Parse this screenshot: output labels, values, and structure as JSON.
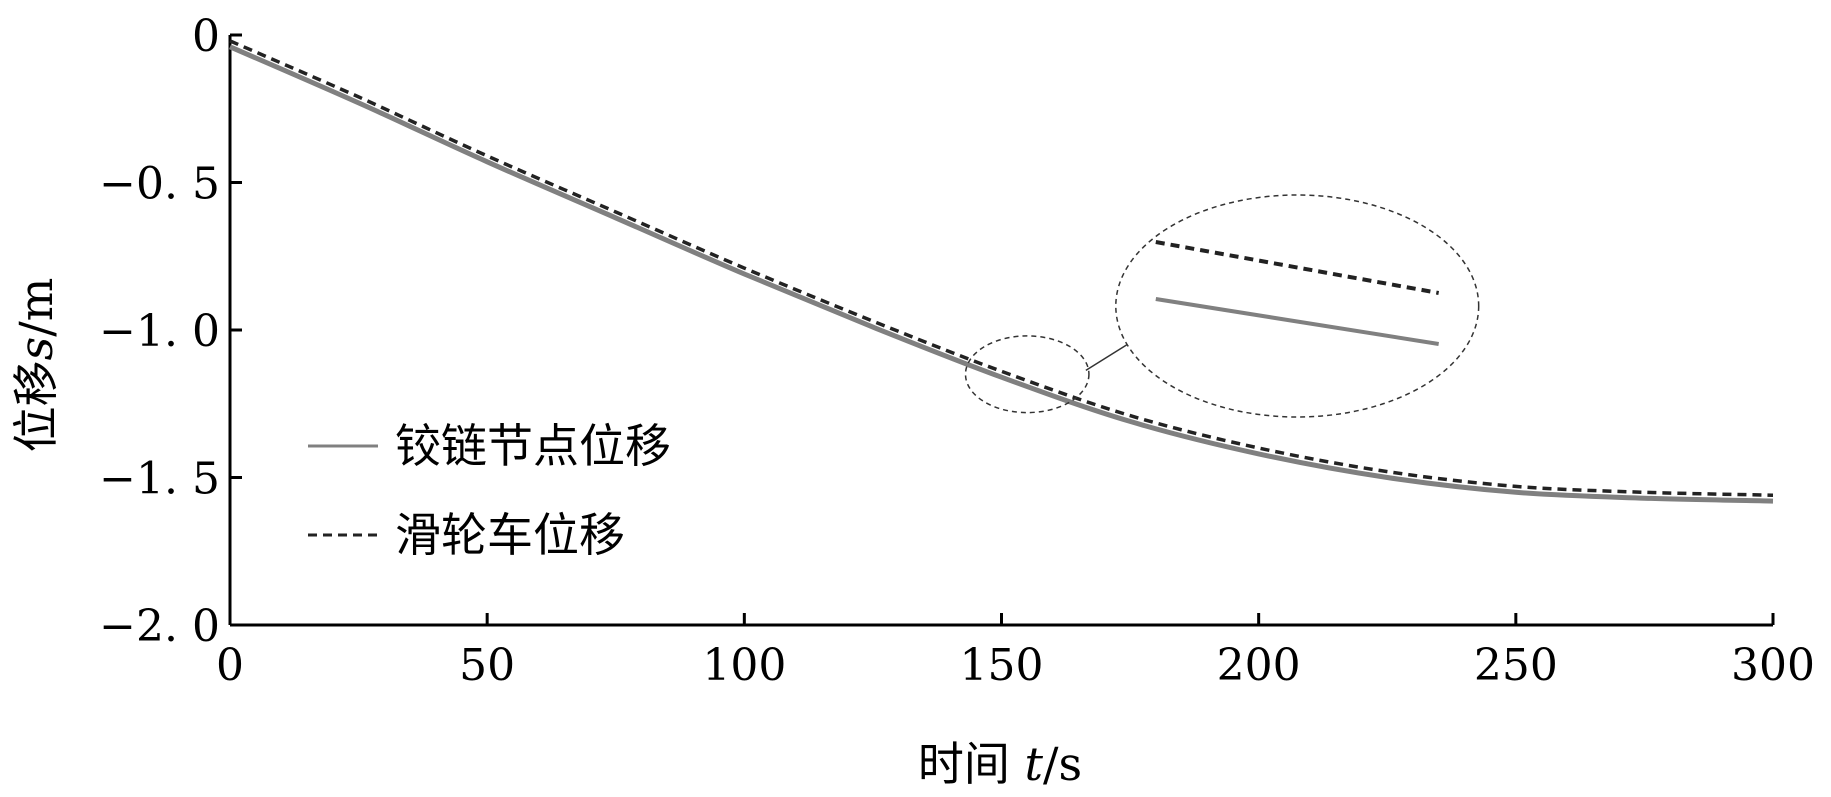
{
  "chart_data": {
    "type": "line",
    "xlabel_main": "时间 ",
    "xlabel_var": "t",
    "xlabel_unit": "/s",
    "ylabel_main": "位移",
    "ylabel_var": "s",
    "ylabel_unit": "/m",
    "xlim": [
      0,
      300
    ],
    "ylim": [
      -2.0,
      0
    ],
    "x_ticks": [
      0,
      50,
      100,
      150,
      200,
      250,
      300
    ],
    "x_tick_labels": [
      "0",
      "50",
      "100",
      "150",
      "200",
      "250",
      "300"
    ],
    "y_ticks": [
      0,
      -0.5,
      -1.0,
      -1.5,
      -2.0
    ],
    "y_tick_labels": [
      "0",
      "−0. 5",
      "−1. 0",
      "−1. 5",
      "−2. 0"
    ],
    "grid": false,
    "legend_position": "lower-left",
    "series": [
      {
        "name": "铰链节点位移",
        "style": "solid",
        "color": "#808080",
        "x": [
          0,
          25,
          50,
          75,
          100,
          125,
          150,
          175,
          200,
          225,
          250,
          275,
          300
        ],
        "y": [
          -0.04,
          -0.23,
          -0.43,
          -0.62,
          -0.81,
          -0.99,
          -1.16,
          -1.31,
          -1.42,
          -1.5,
          -1.55,
          -1.57,
          -1.58
        ]
      },
      {
        "name": "滑轮车位移",
        "style": "dashed",
        "color": "#222222",
        "x": [
          0,
          25,
          50,
          75,
          100,
          125,
          150,
          175,
          200,
          225,
          250,
          275,
          300
        ],
        "y": [
          -0.02,
          -0.21,
          -0.41,
          -0.6,
          -0.79,
          -0.97,
          -1.14,
          -1.29,
          -1.4,
          -1.48,
          -1.53,
          -1.55,
          -1.56
        ]
      }
    ],
    "inset": {
      "zoom_region": {
        "x": [
          143,
          167
        ],
        "y": [
          -1.28,
          -1.02
        ]
      },
      "segment_x": [
        180,
        235
      ]
    }
  }
}
